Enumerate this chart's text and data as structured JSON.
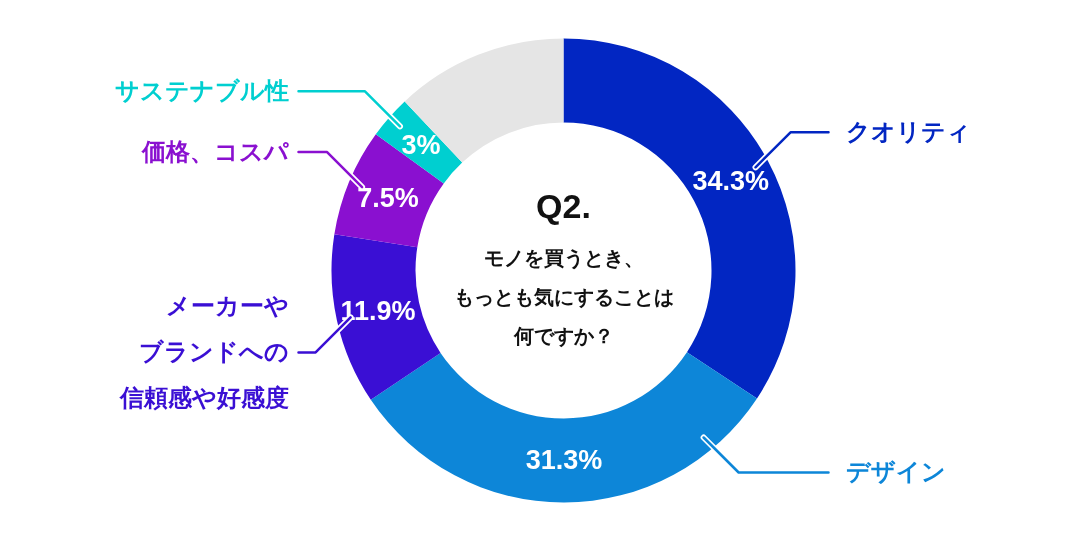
{
  "chart_data": {
    "type": "donut",
    "title": "Q2.",
    "subtitle": "モノを買うとき、もっとも気にすることは何ですか？",
    "categories": [
      "クオリティ",
      "デザイン",
      "メーカーやブランドへの信頼感や好感度",
      "価格、コスパ",
      "サステナブル性",
      null
    ],
    "values": [
      34.3,
      31.3,
      11.9,
      7.5,
      3,
      12
    ],
    "colors": [
      "#0226c2",
      "#0d86d8",
      "#3a0fd4",
      "#8a10d0",
      "#00cfd0",
      "#e5e5e5"
    ],
    "value_labels": [
      "34.3%",
      "31.3%",
      "11.9%",
      "7.5%",
      "3%",
      null
    ]
  }
}
